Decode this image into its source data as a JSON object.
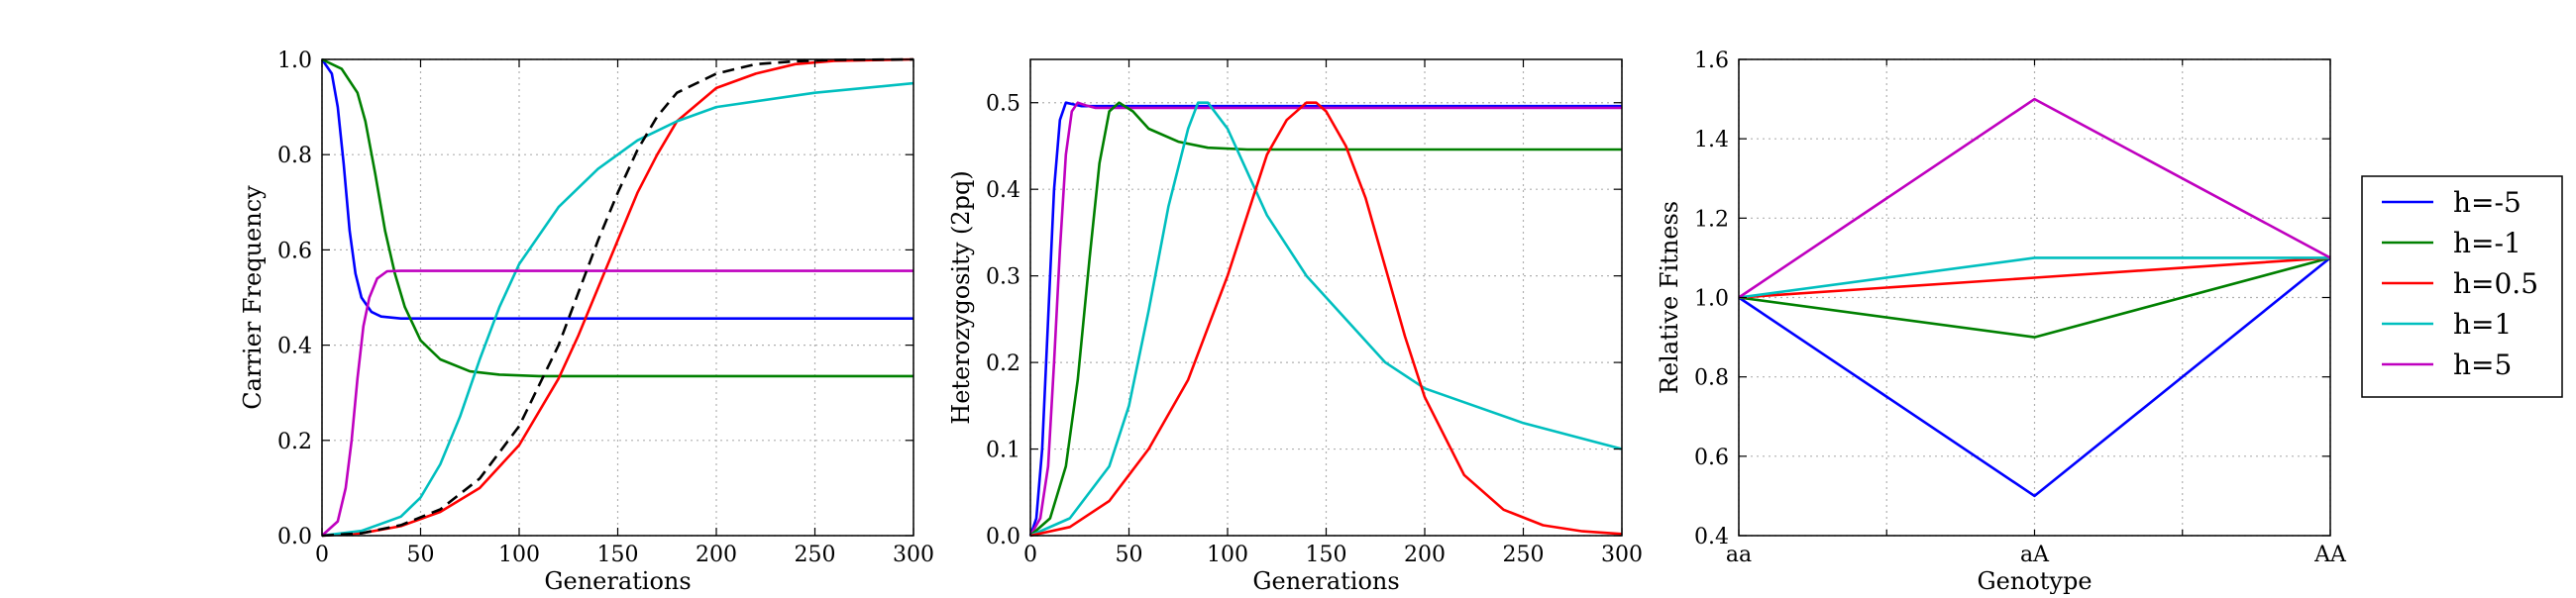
{
  "chart_data": [
    {
      "type": "line",
      "xlabel": "Generations",
      "ylabel": "Carrier Frequency",
      "xlim": [
        0,
        300
      ],
      "ylim": [
        0,
        1
      ],
      "xticks": [
        0,
        50,
        100,
        150,
        200,
        250,
        300
      ],
      "yticks": [
        0,
        0.2,
        0.4,
        0.6,
        0.8,
        1.0
      ],
      "ytick_labels": [
        "0.0",
        "0.2",
        "0.4",
        "0.6",
        "0.8",
        "1.0"
      ],
      "grid": true,
      "series": [
        {
          "color": "#0000ff",
          "x": [
            0,
            5,
            8,
            11,
            14,
            17,
            20,
            25,
            30,
            40,
            300
          ],
          "y": [
            1.0,
            0.97,
            0.9,
            0.78,
            0.64,
            0.55,
            0.5,
            0.47,
            0.46,
            0.456,
            0.456
          ]
        },
        {
          "color": "#008000",
          "x": [
            0,
            10,
            18,
            22,
            27,
            32,
            37,
            42,
            50,
            60,
            75,
            90,
            110,
            300
          ],
          "y": [
            1.0,
            0.98,
            0.93,
            0.87,
            0.76,
            0.64,
            0.55,
            0.48,
            0.41,
            0.37,
            0.345,
            0.338,
            0.335,
            0.335
          ]
        },
        {
          "color": "#ff0000",
          "x": [
            0,
            20,
            40,
            60,
            80,
            100,
            120,
            130,
            140,
            150,
            160,
            170,
            180,
            200,
            220,
            240,
            260,
            300
          ],
          "y": [
            0,
            0.005,
            0.02,
            0.05,
            0.1,
            0.19,
            0.33,
            0.42,
            0.52,
            0.62,
            0.72,
            0.8,
            0.87,
            0.94,
            0.97,
            0.99,
            0.997,
            1.0
          ]
        },
        {
          "color": "#00bfbf",
          "x": [
            0,
            20,
            40,
            50,
            60,
            70,
            80,
            90,
            100,
            120,
            140,
            160,
            180,
            200,
            250,
            300
          ],
          "y": [
            0,
            0.01,
            0.04,
            0.08,
            0.15,
            0.25,
            0.37,
            0.48,
            0.57,
            0.69,
            0.77,
            0.83,
            0.87,
            0.9,
            0.93,
            0.95
          ]
        },
        {
          "color": "#bf00bf",
          "x": [
            0,
            8,
            12,
            15,
            18,
            21,
            24,
            28,
            33,
            40,
            300
          ],
          "y": [
            0,
            0.03,
            0.1,
            0.2,
            0.33,
            0.44,
            0.5,
            0.54,
            0.555,
            0.556,
            0.556
          ]
        },
        {
          "color": "#000000",
          "dashed": true,
          "x": [
            0,
            20,
            40,
            60,
            80,
            100,
            120,
            130,
            140,
            150,
            160,
            170,
            180,
            200,
            220,
            240,
            260,
            300
          ],
          "y": [
            0,
            0.005,
            0.022,
            0.055,
            0.12,
            0.23,
            0.4,
            0.51,
            0.62,
            0.72,
            0.81,
            0.88,
            0.93,
            0.97,
            0.99,
            0.996,
            0.999,
            1.0
          ]
        }
      ]
    },
    {
      "type": "line",
      "xlabel": "Generations",
      "ylabel": "Heterozygosity (2pq)",
      "xlim": [
        0,
        300
      ],
      "ylim": [
        0,
        0.55
      ],
      "xticks": [
        0,
        50,
        100,
        150,
        200,
        250,
        300
      ],
      "yticks": [
        0,
        0.1,
        0.2,
        0.3,
        0.4,
        0.5
      ],
      "ytick_labels": [
        "0.0",
        "0.1",
        "0.2",
        "0.3",
        "0.4",
        "0.5"
      ],
      "grid": true,
      "series": [
        {
          "color": "#0000ff",
          "x": [
            0,
            3,
            6,
            9,
            12,
            15,
            18,
            22,
            26,
            30,
            300
          ],
          "y": [
            0,
            0.02,
            0.1,
            0.25,
            0.4,
            0.48,
            0.5,
            0.498,
            0.496,
            0.496,
            0.496
          ]
        },
        {
          "color": "#bf00bf",
          "x": [
            0,
            5,
            9,
            12,
            15,
            18,
            21,
            24,
            28,
            33,
            300
          ],
          "y": [
            0,
            0.02,
            0.08,
            0.2,
            0.33,
            0.44,
            0.49,
            0.5,
            0.497,
            0.494,
            0.494
          ]
        },
        {
          "color": "#008000",
          "x": [
            0,
            10,
            18,
            24,
            30,
            35,
            40,
            45,
            52,
            60,
            75,
            90,
            110,
            300
          ],
          "y": [
            0,
            0.02,
            0.08,
            0.18,
            0.32,
            0.43,
            0.49,
            0.5,
            0.49,
            0.47,
            0.455,
            0.448,
            0.446,
            0.446
          ]
        },
        {
          "color": "#00bfbf",
          "x": [
            0,
            20,
            40,
            50,
            60,
            70,
            80,
            85,
            90,
            100,
            110,
            120,
            140,
            160,
            180,
            200,
            250,
            300
          ],
          "y": [
            0,
            0.02,
            0.08,
            0.15,
            0.26,
            0.38,
            0.47,
            0.5,
            0.5,
            0.47,
            0.42,
            0.37,
            0.3,
            0.25,
            0.2,
            0.17,
            0.13,
            0.1
          ]
        },
        {
          "color": "#ff0000",
          "x": [
            0,
            20,
            40,
            60,
            80,
            100,
            110,
            120,
            130,
            140,
            145,
            150,
            160,
            170,
            180,
            190,
            200,
            220,
            240,
            260,
            280,
            300
          ],
          "y": [
            0,
            0.01,
            0.04,
            0.1,
            0.18,
            0.3,
            0.37,
            0.44,
            0.48,
            0.5,
            0.5,
            0.49,
            0.45,
            0.39,
            0.31,
            0.23,
            0.16,
            0.07,
            0.03,
            0.012,
            0.005,
            0.002
          ]
        }
      ]
    },
    {
      "type": "line",
      "xlabel": "Genotype",
      "ylabel": "Relative Fitness",
      "categories": [
        "aa",
        "aA",
        "AA"
      ],
      "ylim": [
        0.4,
        1.6
      ],
      "yticks": [
        0.4,
        0.6,
        0.8,
        1.0,
        1.2,
        1.4,
        1.6
      ],
      "ytick_labels": [
        "0.4",
        "0.6",
        "0.8",
        "1.0",
        "1.2",
        "1.4",
        "1.6"
      ],
      "grid": true,
      "legend_position": "right, outside the axes",
      "series": [
        {
          "name": "h=-5",
          "color": "#0000ff",
          "values": [
            1.0,
            0.5,
            1.1
          ]
        },
        {
          "name": "h=-1",
          "color": "#008000",
          "values": [
            1.0,
            0.9,
            1.1
          ]
        },
        {
          "name": "h=0.5",
          "color": "#ff0000",
          "values": [
            1.0,
            1.05,
            1.1
          ]
        },
        {
          "name": "h=1",
          "color": "#00bfbf",
          "values": [
            1.0,
            1.1,
            1.1
          ]
        },
        {
          "name": "h=5",
          "color": "#bf00bf",
          "values": [
            1.0,
            1.5,
            1.1
          ]
        }
      ]
    }
  ]
}
